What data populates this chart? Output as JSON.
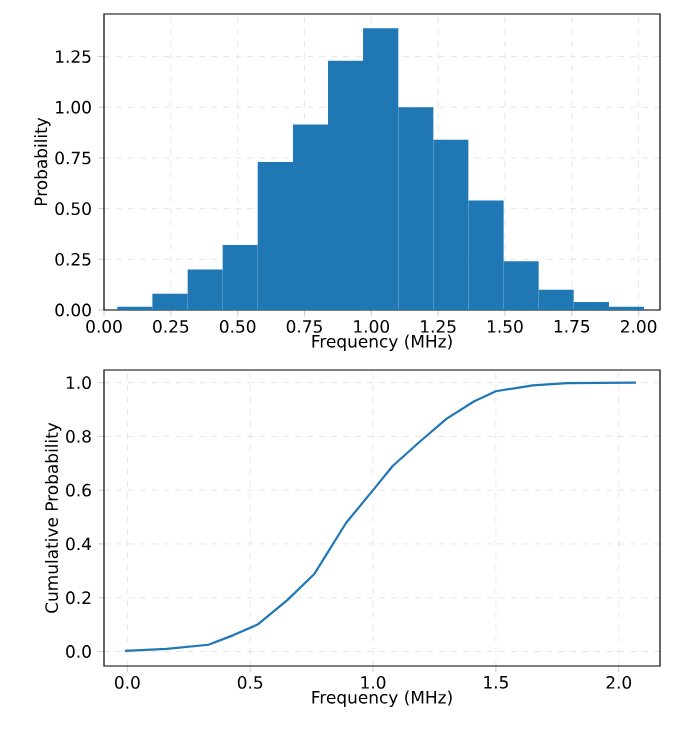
{
  "chart_data": [
    {
      "type": "histogram",
      "xlabel": "Frequency (MHz)",
      "ylabel": "Probability",
      "color": "#1f77b4",
      "bins": [
        0.05,
        0.181,
        0.313,
        0.444,
        0.575,
        0.707,
        0.838,
        0.969,
        1.101,
        1.232,
        1.363,
        1.495,
        1.626,
        1.757,
        1.889,
        2.02
      ],
      "values": [
        0.016,
        0.08,
        0.2,
        0.32,
        0.73,
        0.915,
        1.23,
        1.39,
        1.0,
        0.84,
        0.54,
        0.24,
        0.1,
        0.04,
        0.016
      ],
      "xlim": [
        0,
        2.08
      ],
      "ylim": [
        0,
        1.46
      ],
      "xticks": [
        {
          "value": 0,
          "label": "0.00"
        },
        {
          "value": 0.25,
          "label": "0.25"
        },
        {
          "value": 0.5,
          "label": "0.50"
        },
        {
          "value": 0.75,
          "label": "0.75"
        },
        {
          "value": 1,
          "label": "1.00"
        },
        {
          "value": 1.25,
          "label": "1.25"
        },
        {
          "value": 1.5,
          "label": "1.50"
        },
        {
          "value": 1.75,
          "label": "1.75"
        },
        {
          "value": 2,
          "label": "2.00"
        }
      ],
      "yticks": [
        {
          "value": 0,
          "label": "0.00"
        },
        {
          "value": 0.25,
          "label": "0.25"
        },
        {
          "value": 0.5,
          "label": "0.50"
        },
        {
          "value": 0.75,
          "label": "0.75"
        },
        {
          "value": 1,
          "label": "1.00"
        },
        {
          "value": 1.25,
          "label": "1.25"
        }
      ],
      "grid": true
    },
    {
      "type": "line",
      "xlabel": "Frequency (MHz)",
      "ylabel": "Cumulative Probability",
      "color": "#1f77b4",
      "x": [
        -0.01,
        0.16,
        0.33,
        0.43,
        0.53,
        0.65,
        0.76,
        0.89,
        1.0,
        1.08,
        1.19,
        1.3,
        1.41,
        1.5,
        1.65,
        1.79,
        2.07
      ],
      "values": [
        0.002,
        0.01,
        0.025,
        0.06,
        0.1,
        0.19,
        0.287,
        0.478,
        0.6,
        0.69,
        0.78,
        0.866,
        0.93,
        0.968,
        0.99,
        0.998,
        1.0
      ],
      "xlim": [
        -0.095,
        2.168
      ],
      "ylim": [
        -0.054,
        1.047
      ],
      "xticks": [
        {
          "value": 0,
          "label": "0.0"
        },
        {
          "value": 0.5,
          "label": "0.5"
        },
        {
          "value": 1,
          "label": "1.0"
        },
        {
          "value": 1.5,
          "label": "1.5"
        },
        {
          "value": 2,
          "label": "2.0"
        }
      ],
      "yticks": [
        {
          "value": 0,
          "label": "0.0"
        },
        {
          "value": 0.2,
          "label": "0.2"
        },
        {
          "value": 0.4,
          "label": "0.4"
        },
        {
          "value": 0.6,
          "label": "0.6"
        },
        {
          "value": 0.8,
          "label": "0.8"
        },
        {
          "value": 1,
          "label": "1.0"
        }
      ],
      "grid": true
    }
  ]
}
